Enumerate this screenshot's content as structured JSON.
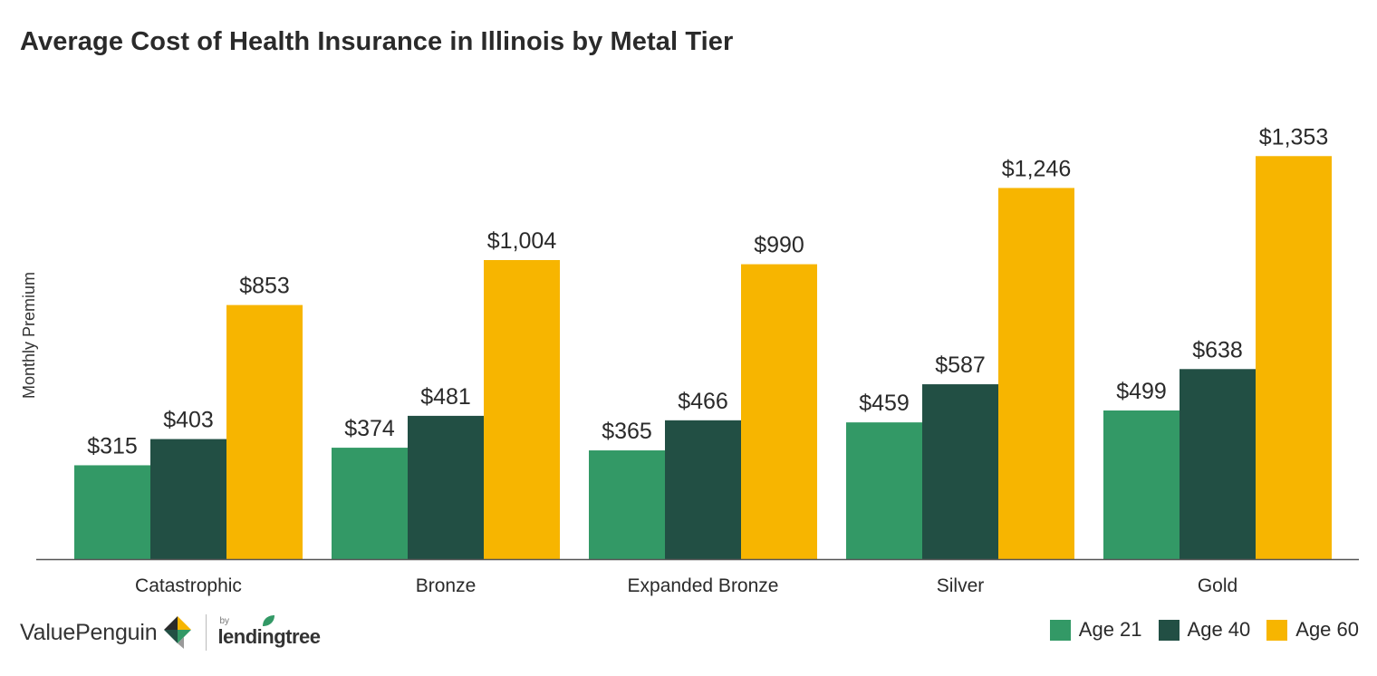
{
  "chart_data": {
    "type": "bar",
    "title": "Average Cost of Health Insurance in Illinois by Metal Tier",
    "xlabel": "",
    "ylabel": "Monthly Premium",
    "ylim": [
      0,
      1450
    ],
    "grid": false,
    "legend_position": "bottom-right",
    "categories": [
      "Catastrophic",
      "Bronze",
      "Expanded Bronze",
      "Silver",
      "Gold"
    ],
    "series": [
      {
        "name": "Age 21",
        "color": "#339966",
        "values": [
          315,
          374,
          365,
          459,
          499
        ],
        "labels": [
          "$315",
          "$374",
          "$365",
          "$459",
          "$499"
        ]
      },
      {
        "name": "Age 40",
        "color": "#224f44",
        "values": [
          403,
          481,
          466,
          587,
          638
        ],
        "labels": [
          "$403",
          "$481",
          "$466",
          "$587",
          "$638"
        ]
      },
      {
        "name": "Age 60",
        "color": "#f7b500",
        "values": [
          853,
          1004,
          990,
          1246,
          1353
        ],
        "labels": [
          "$853",
          "$1,004",
          "$990",
          "$1,246",
          "$1,353"
        ]
      }
    ]
  },
  "branding": {
    "valuepenguin": "ValuePenguin",
    "by": "by",
    "lendingtree": "lendingtree",
    "mark_colors": [
      "#f7b500",
      "#224f44",
      "#339966",
      "#2a2a2a"
    ]
  }
}
